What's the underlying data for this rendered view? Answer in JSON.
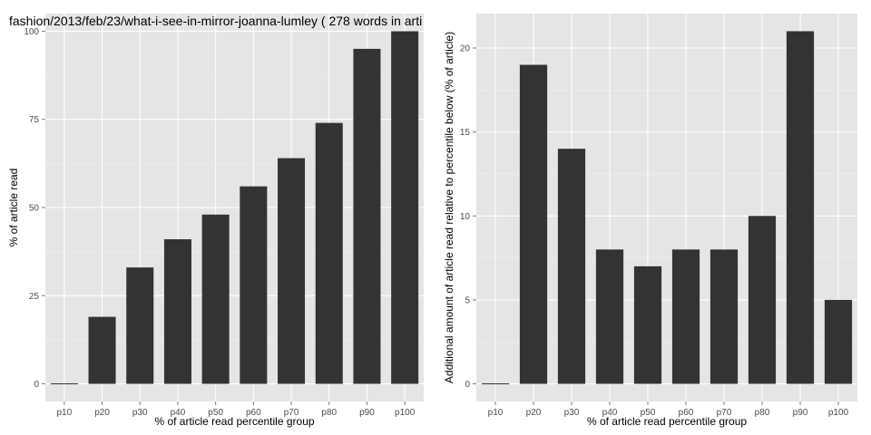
{
  "chart_data": [
    {
      "type": "bar",
      "title": "fashion/2013/feb/23/what-i-see-in-mirror-joanna-lumley ( 278 words in arti",
      "xlabel": "% of article read percentile group",
      "ylabel": "% of article read",
      "categories": [
        "p10",
        "p20",
        "p30",
        "p40",
        "p50",
        "p60",
        "p70",
        "p80",
        "p90",
        "p100"
      ],
      "values": [
        0,
        19,
        33,
        41,
        48,
        56,
        64,
        74,
        95,
        100
      ],
      "ylim": [
        -5,
        105
      ],
      "yticks": [
        0,
        25,
        50,
        75,
        100
      ],
      "grid": true,
      "bar_color": "#333333",
      "panel_color": "#e5e5e5"
    },
    {
      "type": "bar",
      "title": "",
      "xlabel": "% of article read percentile group",
      "ylabel": "Additional amount of article read relative to percentile below (% of article)",
      "categories": [
        "p10",
        "p20",
        "p30",
        "p40",
        "p50",
        "p60",
        "p70",
        "p80",
        "p90",
        "p100"
      ],
      "values": [
        0,
        19,
        14,
        8,
        7,
        8,
        8,
        10,
        21,
        5
      ],
      "ylim": [
        -1.05,
        22.05
      ],
      "yticks": [
        0,
        5,
        10,
        15,
        20
      ],
      "grid": true,
      "bar_color": "#333333",
      "panel_color": "#e5e5e5"
    }
  ]
}
